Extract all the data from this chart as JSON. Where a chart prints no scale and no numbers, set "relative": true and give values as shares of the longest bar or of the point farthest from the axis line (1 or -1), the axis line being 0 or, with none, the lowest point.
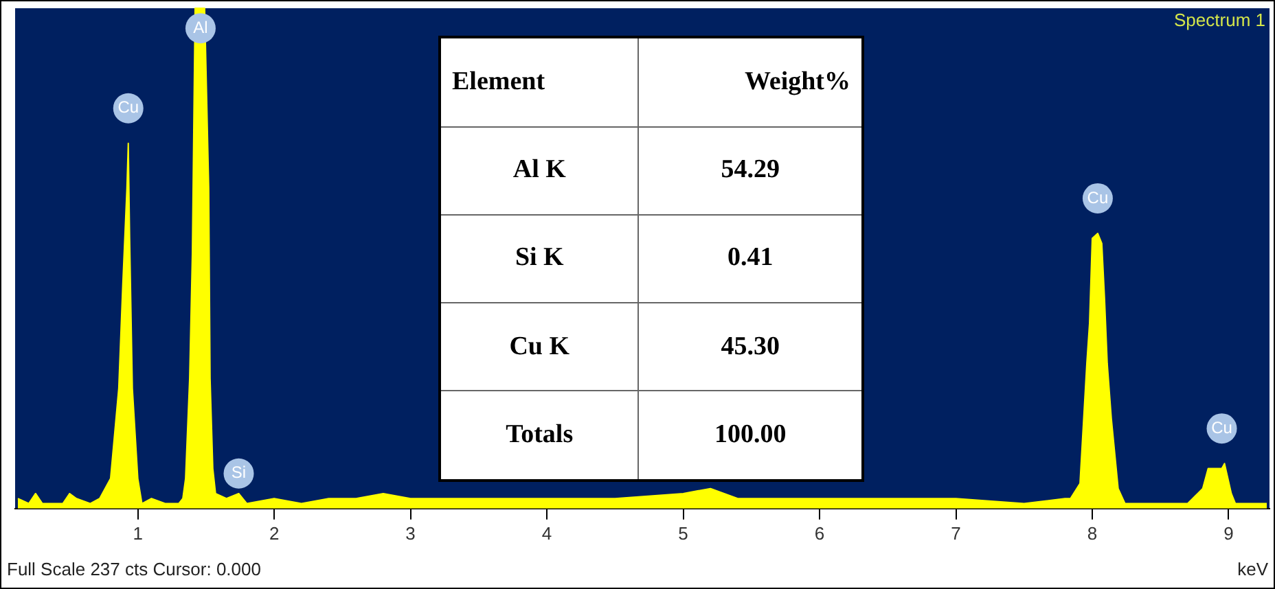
{
  "chart_data": {
    "type": "area",
    "relative": true,
    "xlabel": "keV",
    "x": [
      0.12,
      0.2,
      0.25,
      0.3,
      0.45,
      0.5,
      0.55,
      0.65,
      0.72,
      0.8,
      0.86,
      0.89,
      0.92,
      0.93,
      0.94,
      0.96,
      1.0,
      1.03,
      1.1,
      1.2,
      1.3,
      1.33,
      1.35,
      1.38,
      1.4,
      1.42,
      1.49,
      1.52,
      1.53,
      1.55,
      1.57,
      1.65,
      1.74,
      1.8,
      2.0,
      2.2,
      2.4,
      2.6,
      2.8,
      3.0,
      3.2,
      3.5,
      4.0,
      4.5,
      5.0,
      5.2,
      5.4,
      6.0,
      6.5,
      7.0,
      7.5,
      7.8,
      7.84,
      7.91,
      7.96,
      7.98,
      8.0,
      8.04,
      8.07,
      8.09,
      8.11,
      8.14,
      8.19,
      8.24,
      8.5,
      8.7,
      8.81,
      8.85,
      8.95,
      8.97,
      9.02,
      9.05,
      9.2,
      9.28
    ],
    "series": [
      {
        "color": "#ffff00",
        "values": [
          0.02,
          0.01,
          0.03,
          0.01,
          0.01,
          0.03,
          0.02,
          0.01,
          0.02,
          0.06,
          0.24,
          0.45,
          0.64,
          0.73,
          0.54,
          0.24,
          0.06,
          0.01,
          0.02,
          0.01,
          0.01,
          0.02,
          0.06,
          0.26,
          0.51,
          1,
          1,
          0.64,
          0.26,
          0.08,
          0.03,
          0.02,
          0.03,
          0.01,
          0.02,
          0.01,
          0.02,
          0.02,
          0.03,
          0.02,
          0.02,
          0.02,
          0.02,
          0.02,
          0.03,
          0.04,
          0.02,
          0.02,
          0.02,
          0.02,
          0.01,
          0.02,
          0.02,
          0.05,
          0.29,
          0.37,
          0.54,
          0.55,
          0.53,
          0.42,
          0.29,
          0.18,
          0.04,
          0.01,
          0.01,
          0.01,
          0.04,
          0.08,
          0.08,
          0.09,
          0.03,
          0.01,
          0.01,
          0.01
        ]
      }
    ],
    "xlim": [
      0.1,
      9.3
    ],
    "xticks": [
      1,
      2,
      3,
      4,
      5,
      6,
      7,
      8,
      9
    ],
    "grid": false,
    "legend": false,
    "annotations": [
      "Spectrum 1",
      "Full Scale 237 cts Cursor: 0.000",
      {
        "text": "Cu",
        "x": 0.93,
        "y": 0.8
      },
      {
        "text": "Al",
        "x": 1.46,
        "y": 0.96
      },
      {
        "text": "Si",
        "x": 1.74,
        "y": 0.07
      },
      {
        "text": "Cu",
        "x": 8.04,
        "y": 0.62
      },
      {
        "text": "Cu",
        "x": 8.95,
        "y": 0.16
      },
      "Element",
      "Weight%",
      "Al K",
      "54.29",
      "Si K",
      "0.41",
      "Cu K",
      "45.30",
      "Totals",
      "100.00"
    ]
  }
}
